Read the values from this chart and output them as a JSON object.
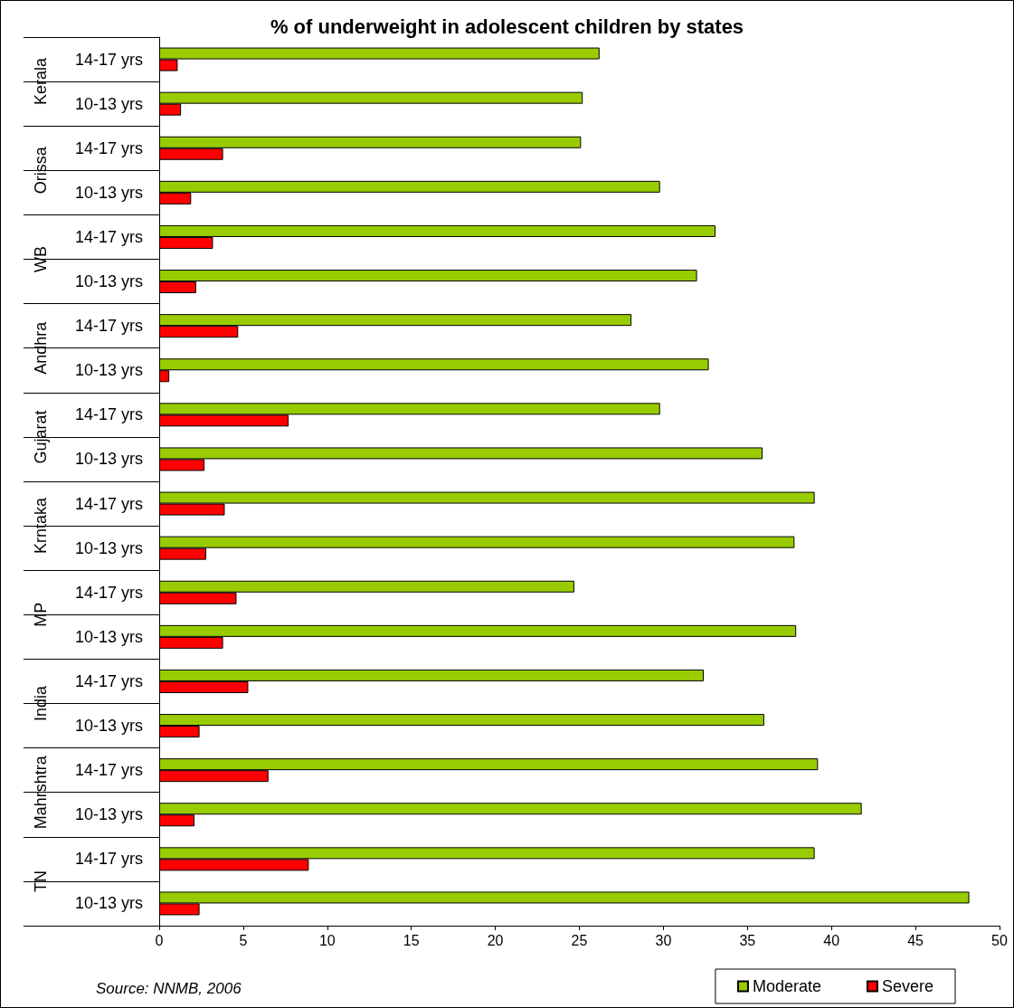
{
  "chart_data": {
    "type": "bar",
    "orientation": "horizontal",
    "title": "% of underweight in adolescent children by states",
    "categories": [
      "14-17 yrs",
      "10-13 yrs",
      "14-17 yrs",
      "10-13 yrs",
      "14-17 yrs",
      "10-13 yrs",
      "14-17 yrs",
      "10-13 yrs",
      "14-17 yrs",
      "10-13 yrs",
      "14-17 yrs",
      "10-13 yrs",
      "14-17 yrs",
      "10-13 yrs",
      "14-17 yrs",
      "10-13 yrs",
      "14-17 yrs",
      "10-13 yrs",
      "14-17 yrs",
      "10-13 yrs"
    ],
    "series": [
      {
        "name": "Moderate",
        "color": "#99cc00",
        "values": [
          26.2,
          25.2,
          25.1,
          29.8,
          33.1,
          32.0,
          28.1,
          32.7,
          29.8,
          35.9,
          39.0,
          37.8,
          24.7,
          37.9,
          32.4,
          36.0,
          39.2,
          41.8,
          39.0,
          48.2
        ]
      },
      {
        "name": "Severe",
        "color": "#ff0000",
        "values": [
          1.1,
          1.3,
          3.8,
          1.9,
          3.2,
          2.2,
          4.7,
          0.6,
          7.7,
          2.7,
          3.9,
          2.8,
          4.6,
          3.8,
          5.3,
          2.4,
          6.5,
          2.1,
          8.9,
          2.4
        ]
      }
    ],
    "xlim": [
      0,
      50
    ],
    "xticks": [
      0,
      5,
      10,
      15,
      20,
      25,
      30,
      35,
      40,
      45,
      50
    ],
    "grid": false,
    "legend": "bottom right",
    "annotations": [
      "Kerala",
      "Orissa",
      "WB",
      "Andhra",
      "Gujarat",
      "Krntaka",
      "MP",
      "India",
      "Mahrshtra",
      "TN",
      "Source: NNMB, 2006"
    ]
  }
}
